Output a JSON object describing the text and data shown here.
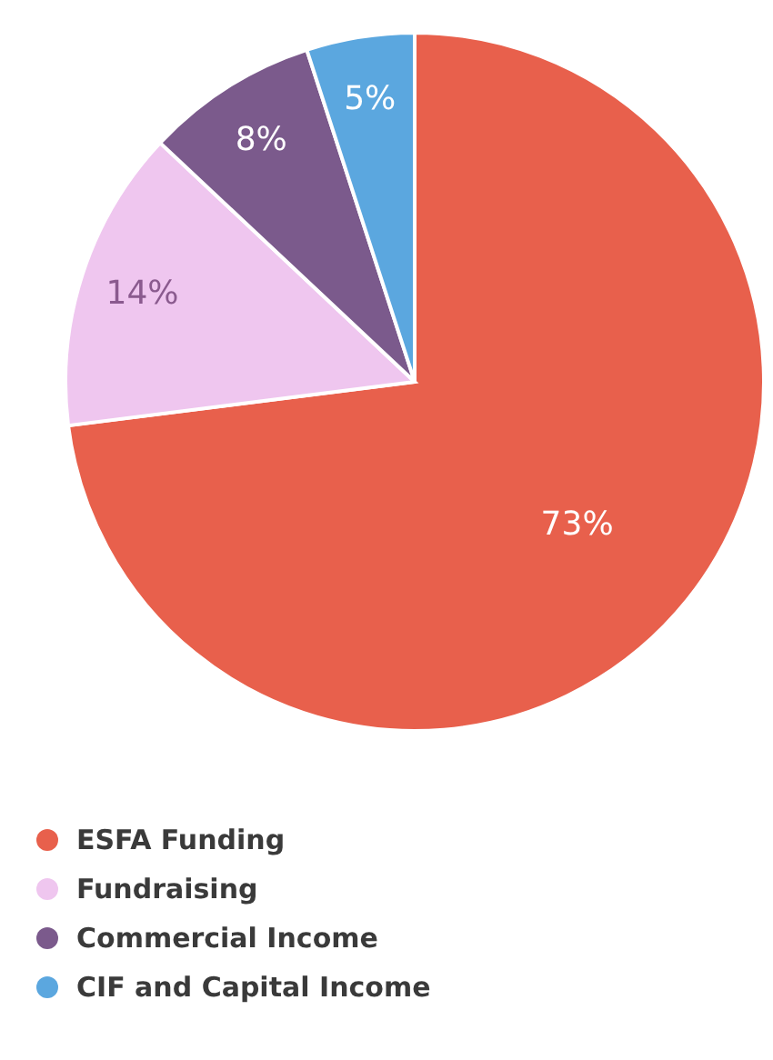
{
  "chart_data": {
    "type": "pie",
    "categories": [
      "ESFA Funding",
      "Fundraising",
      "Commercial Income",
      "CIF and Capital Income"
    ],
    "values": [
      73,
      14,
      8,
      5
    ],
    "colors": [
      "#e8604c",
      "#efc6ef",
      "#7b5a8c",
      "#5ba7df"
    ],
    "value_labels": [
      "73%",
      "14%",
      "8%",
      "5%"
    ],
    "legend": "bottom left"
  }
}
